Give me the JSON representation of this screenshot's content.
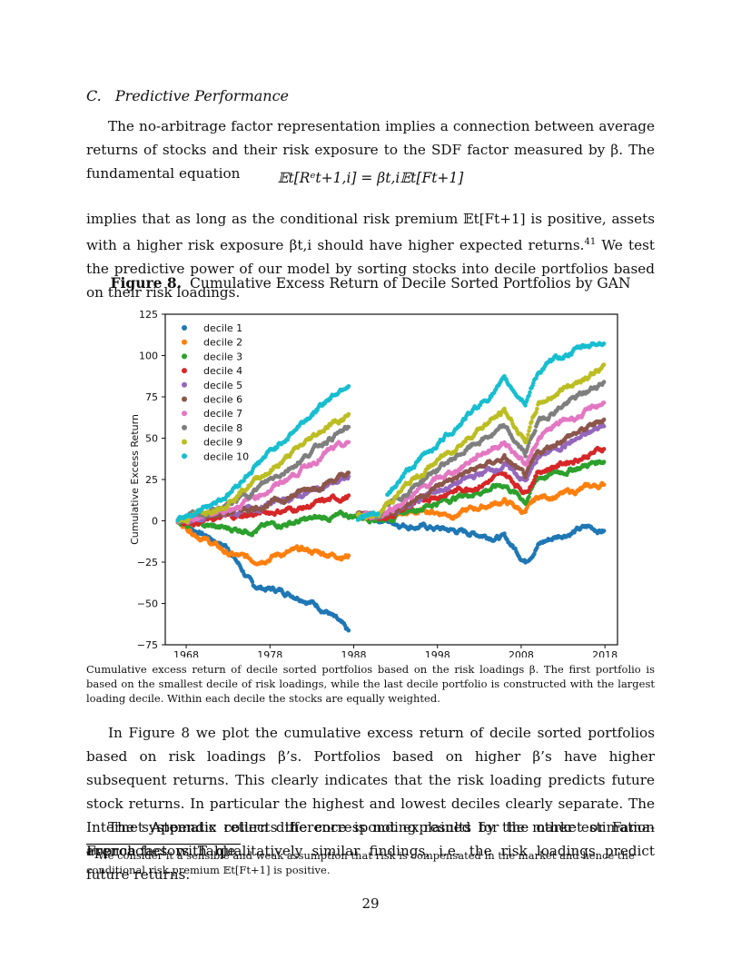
{
  "section": {
    "number": "C.",
    "title": "Predictive Performance"
  },
  "paragraphs": {
    "p1": "The no-arbitrage factor representation implies a connection between average returns of stocks and their risk exposure to the SDF factor measured by β. The fundamental equation",
    "equation": "𝔼t[Rᵉt+1,i] = βt,i𝔼t[Ft+1]",
    "p2_a": "implies that as long as the conditional risk premium 𝔼t[Ft+1] is positive, assets with a higher risk exposure βt,i should have higher expected returns.",
    "p2_fnref": "41",
    "p2_b": " We test the predictive power of our model by sorting stocks into decile portfolios based on their risk loadings.",
    "p3": "In Figure 8 we plot the cumulative excess return of decile sorted portfolios based on risk loadings β’s. Portfolios based on higher β’s have higher subsequent returns. This clearly indicates that the risk loading predicts future stock returns. In particular the highest and lowest deciles clearly separate. The Internet Appendix collects the corresponding results for the other estimation approaches with qualitatively similar findings, i.e. the risk loadings predict future returns.",
    "p4": "The systematic return difference is not explained by the market or Fama-French factors. Table"
  },
  "figure": {
    "label": "Figure 8.",
    "title": "Cumulative Excess Return of Decile Sorted Portfolios by GAN",
    "caption": "Cumulative excess return of decile sorted portfolios based on the risk loadings β. The first portfolio is based on the smallest decile of risk loadings, while the last decile portfolio is constructed with the largest loading decile. Within each decile the stocks are equally weighted."
  },
  "footnote": {
    "mark": "41",
    "text": "We consider it a sensible and weak assumption that risk is compensated in the market and hence the conditional risk premium 𝔼t[Ft+1] is positive."
  },
  "page_number": "29",
  "chart_data": {
    "type": "scatter",
    "title": "",
    "xlabel": "",
    "ylabel": "Cumulative Excess Return",
    "xlim": [
      1965.5,
      2019.5
    ],
    "ylim": [
      -75,
      125
    ],
    "x_ticks": [
      "1968",
      "1978",
      "1988",
      "1998",
      "2008",
      "2018"
    ],
    "y_ticks": [
      "125",
      "100",
      "75",
      "50",
      "25",
      "0",
      "−25",
      "−50",
      "−75"
    ],
    "legend_position": "top-left",
    "grid": false,
    "x_years": [
      1967,
      1970,
      1973,
      1976,
      1979,
      1982,
      1985,
      1987.5,
      1988.5,
      1991,
      1992,
      1994,
      1997,
      2000,
      2003,
      2006,
      2008.5,
      2010,
      2013,
      2016,
      2018
    ],
    "series": [
      {
        "name": "decile 1",
        "color": "#1f77b4",
        "values": [
          0,
          -8,
          -16,
          -40,
          -42,
          -46,
          -55,
          -69,
          3,
          1,
          0,
          -2,
          -4,
          -6,
          -8,
          -10,
          -24,
          -14,
          -8,
          -4,
          -6
        ]
      },
      {
        "name": "decile 2",
        "color": "#ff7f0e",
        "values": [
          0,
          -10,
          -20,
          -24,
          -20,
          -18,
          -20,
          -21,
          3,
          2,
          2,
          4,
          6,
          4,
          8,
          12,
          5,
          14,
          16,
          20,
          22
        ]
      },
      {
        "name": "decile 3",
        "color": "#2ca02c",
        "values": [
          0,
          -3,
          -5,
          -5,
          -2,
          0,
          2,
          3,
          3,
          2,
          2,
          5,
          10,
          14,
          18,
          22,
          12,
          26,
          30,
          34,
          37
        ]
      },
      {
        "name": "decile 4",
        "color": "#d62728",
        "values": [
          0,
          0,
          2,
          4,
          6,
          8,
          12,
          15,
          3,
          2,
          3,
          7,
          14,
          18,
          22,
          28,
          18,
          30,
          35,
          40,
          44
        ]
      },
      {
        "name": "decile 5",
        "color": "#9467bd",
        "values": [
          0,
          1,
          4,
          7,
          12,
          16,
          22,
          26,
          3,
          2,
          4,
          8,
          16,
          22,
          28,
          34,
          24,
          38,
          46,
          52,
          58
        ]
      },
      {
        "name": "decile 6",
        "color": "#8c564b",
        "values": [
          0,
          2,
          5,
          8,
          12,
          18,
          24,
          28,
          3,
          3,
          4,
          10,
          18,
          26,
          32,
          38,
          26,
          40,
          50,
          56,
          62
        ]
      },
      {
        "name": "decile 7",
        "color": "#e377c2",
        "values": [
          0,
          3,
          7,
          14,
          22,
          32,
          42,
          46,
          3,
          3,
          6,
          12,
          22,
          30,
          40,
          48,
          34,
          50,
          60,
          66,
          72
        ]
      },
      {
        "name": "decile 8",
        "color": "#7f7f7f",
        "values": [
          0,
          4,
          9,
          18,
          28,
          38,
          50,
          56,
          3,
          3,
          8,
          16,
          28,
          38,
          48,
          56,
          40,
          60,
          70,
          78,
          85
        ]
      },
      {
        "name": "decile 9",
        "color": "#bcbd22",
        "values": [
          0,
          5,
          12,
          24,
          34,
          46,
          58,
          64,
          3,
          3,
          10,
          20,
          32,
          44,
          56,
          66,
          48,
          70,
          80,
          88,
          93
        ]
      },
      {
        "name": "decile 10",
        "color": "#17becf",
        "values": [
          0,
          8,
          16,
          32,
          46,
          60,
          74,
          84,
          3,
          3,
          14,
          28,
          42,
          56,
          70,
          84,
          72,
          90,
          100,
          106,
          109
        ]
      }
    ]
  }
}
